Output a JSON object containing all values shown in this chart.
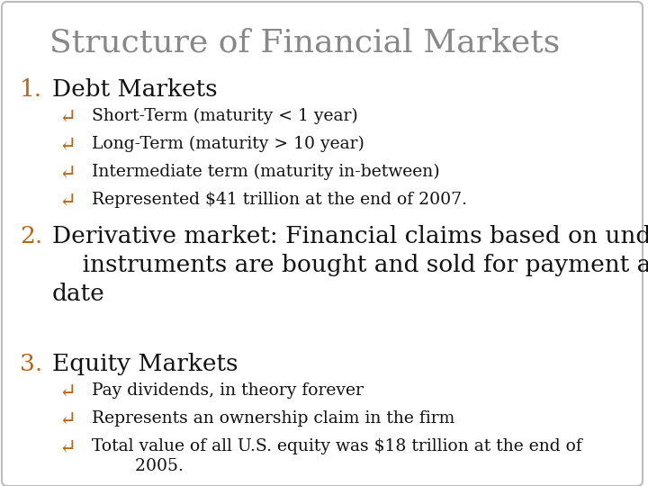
{
  "title": "Structure of Financial Markets",
  "title_color": "#888888",
  "title_fontsize": 26,
  "background_color": "#ffffff",
  "border_color": "#bbbbbb",
  "number_color": "#b8651a",
  "text_color": "#111111",
  "bullet_color": "#b8651a",
  "bullet_symbol": "↵",
  "sections": [
    {
      "number": "1.",
      "heading": "Debt Markets",
      "heading_fontsize": 19,
      "bullets": [
        "Short-Term (maturity < 1 year)",
        "Long-Term (maturity > 10 year)",
        "Intermediate term (maturity in-between)",
        "Represented $41 trillion at the end of 2007."
      ],
      "bullet_fontsize": 13.5
    },
    {
      "number": "2.",
      "heading": "Derivative market: Financial claims based on underlying\n    instruments are bought and sold for payment at a future\ndate",
      "heading_fontsize": 19,
      "bullets": [],
      "bullet_fontsize": 13.5
    },
    {
      "number": "3.",
      "heading": "Equity Markets",
      "heading_fontsize": 19,
      "bullets": [
        "Pay dividends, in theory forever",
        "Represents an ownership claim in the firm",
        "Total value of all U.S. equity was $18 trillion at the end of\n        2005."
      ],
      "bullet_fontsize": 13.5
    }
  ],
  "figsize": [
    7.2,
    5.4
  ],
  "dpi": 100
}
